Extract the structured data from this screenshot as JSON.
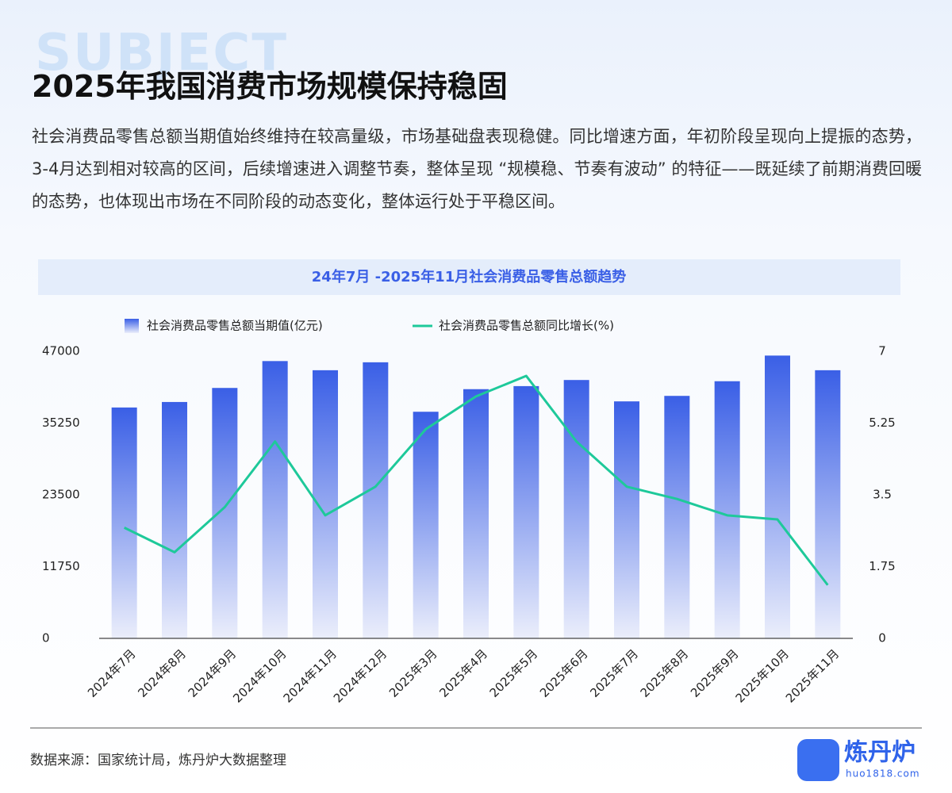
{
  "header": {
    "watermark": "SUBJECT",
    "title": "2025年我国消费市场规模保持稳固"
  },
  "body": {
    "paragraph": "社会消费品零售总额当期值始终维持在较高量级，市场基础盘表现稳健。同比增速方面，年初阶段呈现向上提振的态势，3-4月达到相对较高的区间，后续增速进入调整节奏，整体呈现 “规模稳、节奏有波动” 的特征——既延续了前期消费回暖的态势，也体现出市场在不同阶段的动态变化，整体运行处于平稳区间。"
  },
  "chart_data": {
    "type": "bar",
    "title": "24年7月 -2025年11月社会消费品零售总额趋势",
    "categories": [
      "2024年7月",
      "2024年8月",
      "2024年9月",
      "2024年10月",
      "2024年11月",
      "2024年12月",
      "2025年3月",
      "2025年4月",
      "2025年5月",
      "2025年6月",
      "2025年7月",
      "2025年8月",
      "2025年9月",
      "2025年10月",
      "2025年11月"
    ],
    "series": [
      {
        "name": "社会消费品零售总额当期值(亿元)",
        "color": "#3a5fe6",
        "values": [
          37800,
          38700,
          41000,
          45400,
          43900,
          45200,
          37100,
          40800,
          41300,
          42300,
          38800,
          39700,
          42100,
          46300,
          43900
        ]
      },
      {
        "name": "社会消费品零售总额同比增长(%)",
        "color": "#1ec99a",
        "type": "line",
        "axis": "y2",
        "values": [
          2.7,
          2.1,
          3.2,
          4.8,
          3.0,
          3.7,
          5.1,
          5.9,
          6.4,
          4.8,
          3.7,
          3.4,
          3.0,
          2.9,
          1.3
        ]
      }
    ],
    "ylim": [
      0,
      47000
    ],
    "yticks": [
      0,
      11750,
      23500,
      35250,
      47000
    ],
    "y2lim": [
      0,
      7
    ],
    "y2ticks": [
      0,
      1.75,
      3.5,
      5.25,
      7
    ],
    "grid": false
  },
  "footer": {
    "source": "数据来源：国家统计局，炼丹炉大数据整理",
    "logo": {
      "name": "炼丹炉",
      "url": "huo1818.com"
    }
  }
}
